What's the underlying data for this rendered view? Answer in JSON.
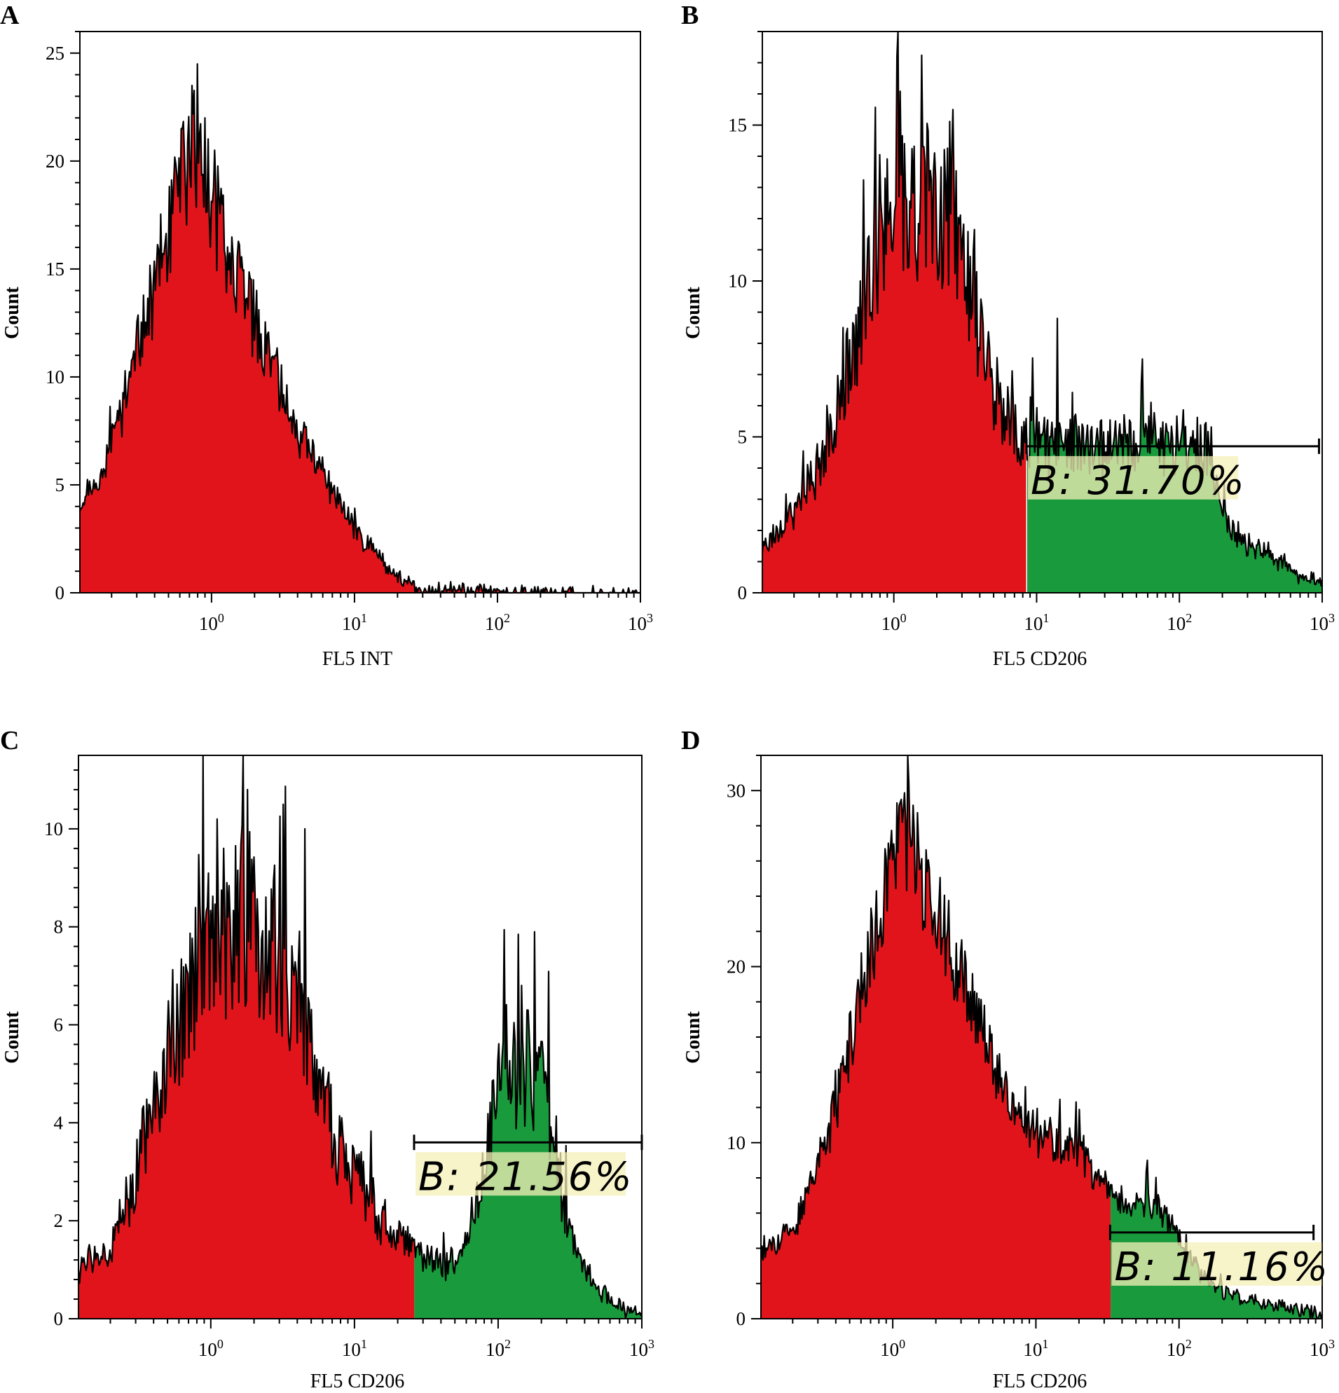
{
  "colors": {
    "negative_fill": "#e2141b",
    "positive_fill": "#199a3c",
    "outline": "#000000",
    "gate_highlight": "#f5f0b8"
  },
  "chart_data": [
    {
      "panel": "A",
      "type": "histogram",
      "xlabel": "FL5 INT",
      "ylabel": "Count",
      "xscale": "log",
      "xlim": [
        0.12,
        1000
      ],
      "ylim": [
        0,
        26
      ],
      "yticks": [
        0,
        5,
        10,
        15,
        20,
        25
      ],
      "xticks": [
        {
          "base": "10",
          "exp": "0"
        },
        {
          "base": "10",
          "exp": "1"
        },
        {
          "base": "10",
          "exp": "2"
        },
        {
          "base": "10",
          "exp": "3"
        }
      ],
      "seed": 11,
      "profile": [
        [
          0.12,
          4.2
        ],
        [
          0.15,
          4.6
        ],
        [
          0.2,
          7
        ],
        [
          0.3,
          11
        ],
        [
          0.45,
          15.5
        ],
        [
          0.6,
          18.5
        ],
        [
          0.75,
          21
        ],
        [
          1.0,
          18
        ],
        [
          1.5,
          15
        ],
        [
          2.5,
          10.5
        ],
        [
          4,
          7.5
        ],
        [
          6,
          5.5
        ],
        [
          10,
          3
        ],
        [
          15,
          1.6
        ],
        [
          20,
          0.8
        ],
        [
          25,
          0.3
        ],
        [
          30,
          0.05
        ],
        [
          40,
          0.2
        ],
        [
          55,
          0.2
        ],
        [
          80,
          0.1
        ],
        [
          90,
          0
        ]
      ],
      "noise": 0.13,
      "spikes": [
        [
          0.8,
          24.5
        ],
        [
          0.73,
          23.5
        ],
        [
          0.62,
          21.5
        ],
        [
          0.9,
          22
        ],
        [
          1.05,
          20.5
        ]
      ],
      "gate": null
    },
    {
      "panel": "B",
      "type": "histogram",
      "xlabel": "FL5 CD206",
      "ylabel": "Count",
      "xscale": "log",
      "xlim": [
        0.12,
        1000
      ],
      "ylim": [
        0,
        18
      ],
      "yticks": [
        0,
        5,
        10,
        15
      ],
      "xticks": [
        {
          "base": "10",
          "exp": "0"
        },
        {
          "base": "10",
          "exp": "1"
        },
        {
          "base": "10",
          "exp": "2"
        },
        {
          "base": "10",
          "exp": "3"
        }
      ],
      "seed": 23,
      "profile": [
        [
          0.12,
          1.5
        ],
        [
          0.2,
          2.6
        ],
        [
          0.3,
          4
        ],
        [
          0.5,
          7.5
        ],
        [
          0.8,
          11.5
        ],
        [
          1.2,
          12.5
        ],
        [
          1.8,
          12.5
        ],
        [
          2.5,
          12
        ],
        [
          3.5,
          9.5
        ],
        [
          5,
          6.5
        ],
        [
          8,
          4.8
        ],
        [
          10,
          4.7
        ],
        [
          20,
          4.7
        ],
        [
          50,
          4.8
        ],
        [
          100,
          4.8
        ],
        [
          150,
          4.6
        ],
        [
          200,
          2.5
        ],
        [
          300,
          1.6
        ],
        [
          500,
          1.0
        ],
        [
          700,
          0.5
        ],
        [
          1000,
          0.3
        ]
      ],
      "noise": 0.2,
      "spikes": [
        [
          1.05,
          17.2
        ],
        [
          2.6,
          15.5
        ],
        [
          14,
          8.8
        ],
        [
          55,
          7.5
        ]
      ],
      "gate": {
        "from": 8.5,
        "to": 950,
        "y_level": 4.7,
        "label": "B: 31.70%",
        "percent": 31.7
      }
    },
    {
      "panel": "C",
      "type": "histogram",
      "xlabel": "FL5 CD206",
      "ylabel": "Count",
      "xscale": "log",
      "xlim": [
        0.12,
        1000
      ],
      "ylim": [
        0,
        11.5
      ],
      "yticks": [
        0,
        2,
        4,
        6,
        8,
        10
      ],
      "xticks": [
        {
          "base": "10",
          "exp": "0"
        },
        {
          "base": "10",
          "exp": "1"
        },
        {
          "base": "10",
          "exp": "2"
        },
        {
          "base": "10",
          "exp": "3"
        }
      ],
      "seed": 37,
      "profile": [
        [
          0.12,
          1.1
        ],
        [
          0.2,
          1.3
        ],
        [
          0.3,
          3
        ],
        [
          0.6,
          6
        ],
        [
          1.0,
          7.5
        ],
        [
          1.5,
          8.3
        ],
        [
          2.5,
          8
        ],
        [
          4,
          6.5
        ],
        [
          6,
          4.3
        ],
        [
          10,
          3
        ],
        [
          15,
          2
        ],
        [
          25,
          1.4
        ],
        [
          40,
          1.1
        ],
        [
          60,
          1.5
        ],
        [
          80,
          3
        ],
        [
          100,
          5.5
        ],
        [
          150,
          4.8
        ],
        [
          200,
          5.2
        ],
        [
          280,
          2.5
        ],
        [
          400,
          1.0
        ],
        [
          600,
          0.4
        ],
        [
          800,
          0.15
        ],
        [
          1000,
          0.1
        ]
      ],
      "noise": 0.24,
      "spikes": [
        [
          1.8,
          10.8
        ],
        [
          1.1,
          10.2
        ],
        [
          3.2,
          10.5
        ],
        [
          4.5,
          10.0
        ],
        [
          180,
          7.9
        ],
        [
          160,
          6.3
        ]
      ],
      "gate": {
        "from": 26,
        "to": 1000,
        "y_level": 3.6,
        "label": "B: 21.56%",
        "percent": 21.56
      }
    },
    {
      "panel": "D",
      "type": "histogram",
      "xlabel": "FL5 CD206",
      "ylabel": "Count",
      "xscale": "log",
      "xlim": [
        0.12,
        1000
      ],
      "ylim": [
        0,
        32
      ],
      "yticks": [
        0,
        10,
        20,
        30
      ],
      "xticks": [
        {
          "base": "10",
          "exp": "0"
        },
        {
          "base": "10",
          "exp": "1"
        },
        {
          "base": "10",
          "exp": "2"
        },
        {
          "base": "10",
          "exp": "3"
        }
      ],
      "seed": 53,
      "profile": [
        [
          0.12,
          3.8
        ],
        [
          0.2,
          5
        ],
        [
          0.35,
          10
        ],
        [
          0.6,
          18.5
        ],
        [
          0.9,
          25
        ],
        [
          1.2,
          27.5
        ],
        [
          1.6,
          25.5
        ],
        [
          2.5,
          21
        ],
        [
          4,
          17
        ],
        [
          6,
          12.5
        ],
        [
          10,
          10.5
        ],
        [
          20,
          9.3
        ],
        [
          30,
          7.8
        ],
        [
          45,
          6.3
        ],
        [
          70,
          6.5
        ],
        [
          100,
          4.5
        ],
        [
          150,
          2.3
        ],
        [
          250,
          1.2
        ],
        [
          400,
          0.8
        ],
        [
          600,
          0.6
        ],
        [
          900,
          0.3
        ],
        [
          1000,
          0.2
        ]
      ],
      "noise": 0.12,
      "spikes": [
        [
          1.3,
          30.5
        ],
        [
          1.15,
          29.5
        ],
        [
          60,
          9.0
        ]
      ],
      "gate": {
        "from": 33,
        "to": 870,
        "y_level": 4.9,
        "label": "B: 11.16%",
        "percent": 11.16
      }
    }
  ]
}
